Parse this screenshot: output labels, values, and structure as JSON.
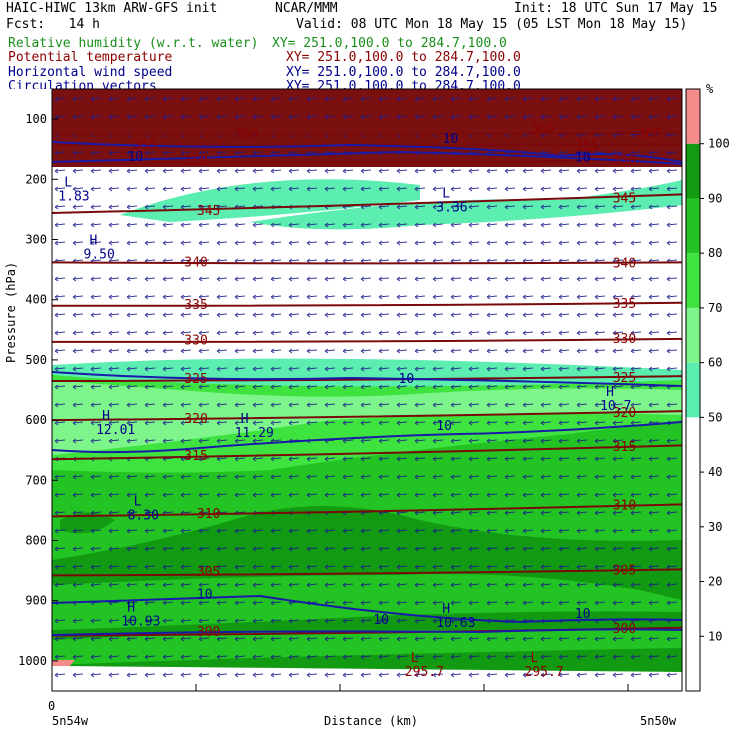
{
  "header": {
    "model": "HAIC-HIWC 13km ARW-GFS init",
    "org": "NCAR/MMM",
    "init": "Init: 18 UTC Sun 17 May 15",
    "fcst": "Fcst:   14 h",
    "valid": "Valid: 08 UTC Mon 18 May 15 (05 LST Mon 18 May 15)"
  },
  "fields": [
    {
      "name": "Relative humidity (w.r.t. water)",
      "xy": "XY= 251.0,100.0 to 284.7,100.0",
      "color": "#1a8f1a"
    },
    {
      "name": "Potential temperature",
      "xy": "XY= 251.0,100.0 to 284.7,100.0",
      "color": "#8b0000"
    },
    {
      "name": "Horizontal wind speed",
      "xy": "XY= 251.0,100.0 to 284.7,100.0",
      "color": "#00008b"
    },
    {
      "name": "Circulation vectors",
      "xy": "XY= 251.0,100.0 to 284.7,100.0",
      "color": "#00008b"
    }
  ],
  "chart_data": {
    "type": "heatmap",
    "ylabel": "Pressure (hPa)",
    "xlabel": "Distance (km)",
    "x_start_label": "0",
    "x_left_label": "5n54w",
    "x_right_label": "5n50w",
    "yticks": [
      100,
      200,
      300,
      400,
      500,
      600,
      700,
      800,
      900,
      1000
    ],
    "ylim": [
      50,
      1050
    ],
    "colorbar": {
      "unit": "%",
      "ticks": [
        10,
        20,
        30,
        40,
        50,
        60,
        70,
        80,
        90,
        100
      ],
      "bands": [
        {
          "from": 0,
          "to": 50,
          "color": "#ffffff"
        },
        {
          "from": 50,
          "to": 60,
          "color": "#5cedb0"
        },
        {
          "from": 60,
          "to": 70,
          "color": "#7df58a"
        },
        {
          "from": 70,
          "to": 80,
          "color": "#3fe33f"
        },
        {
          "from": 80,
          "to": 90,
          "color": "#22c322"
        },
        {
          "from": 90,
          "to": 100,
          "color": "#129a12"
        },
        {
          "from": 100,
          "to": 110,
          "color": "#f48c8c"
        }
      ]
    },
    "theta_contours": [
      {
        "value": 300,
        "p_left": 958,
        "p_right": 945
      },
      {
        "value": 305,
        "p_left": 858,
        "p_right": 848
      },
      {
        "value": 310,
        "p_left": 760,
        "p_right": 740
      },
      {
        "value": 315,
        "p_left": 665,
        "p_right": 642
      },
      {
        "value": 320,
        "p_left": 600,
        "p_right": 585
      },
      {
        "value": 325,
        "p_left": 535,
        "p_right": 527
      },
      {
        "value": 330,
        "p_left": 470,
        "p_right": 465
      },
      {
        "value": 335,
        "p_left": 410,
        "p_right": 405
      },
      {
        "value": 340,
        "p_left": 338,
        "p_right": 338
      },
      {
        "value": 345,
        "p_left": 256,
        "p_right": 225
      },
      {
        "value": 350,
        "p_left": 172,
        "p_right": 168
      },
      {
        "value": 355,
        "p_left": 143,
        "p_right": 142
      },
      {
        "value": 360,
        "p_left": 125,
        "p_right": 122
      }
    ],
    "theta_labels": [
      {
        "text": "300",
        "x": 0.23,
        "p": 952
      },
      {
        "text": "300",
        "x": 0.89,
        "p": 947
      },
      {
        "text": "305",
        "x": 0.23,
        "p": 852
      },
      {
        "text": "305",
        "x": 0.89,
        "p": 850
      },
      {
        "text": "310",
        "x": 0.23,
        "p": 756
      },
      {
        "text": "310",
        "x": 0.89,
        "p": 742
      },
      {
        "text": "315",
        "x": 0.21,
        "p": 660
      },
      {
        "text": "315",
        "x": 0.89,
        "p": 645
      },
      {
        "text": "320",
        "x": 0.21,
        "p": 598
      },
      {
        "text": "320",
        "x": 0.89,
        "p": 588
      },
      {
        "text": "325",
        "x": 0.21,
        "p": 532
      },
      {
        "text": "325",
        "x": 0.89,
        "p": 530
      },
      {
        "text": "330",
        "x": 0.21,
        "p": 468
      },
      {
        "text": "330",
        "x": 0.89,
        "p": 465
      },
      {
        "text": "335",
        "x": 0.21,
        "p": 409
      },
      {
        "text": "335",
        "x": 0.89,
        "p": 407
      },
      {
        "text": "340",
        "x": 0.21,
        "p": 338
      },
      {
        "text": "340",
        "x": 0.89,
        "p": 340
      },
      {
        "text": "345",
        "x": 0.23,
        "p": 253
      },
      {
        "text": "345",
        "x": 0.89,
        "p": 232
      },
      {
        "text": "350",
        "x": 0.21,
        "p": 170
      },
      {
        "text": "350",
        "x": 0.89,
        "p": 168
      },
      {
        "text": "355",
        "x": 0.13,
        "p": 143
      },
      {
        "text": "355",
        "x": 0.83,
        "p": 145
      },
      {
        "text": "360",
        "x": 0.29,
        "p": 125
      },
      {
        "text": "360",
        "x": 0.93,
        "p": 124
      },
      {
        "text": "365",
        "x": 0.76,
        "p": 116
      }
    ],
    "wind_labels": [
      {
        "text": "10",
        "x": 0.12,
        "p": 163
      },
      {
        "text": "10",
        "x": 0.62,
        "p": 133
      },
      {
        "text": "10",
        "x": 0.83,
        "p": 164
      },
      {
        "text": "10",
        "x": 0.55,
        "p": 532
      },
      {
        "text": "10",
        "x": 0.61,
        "p": 610
      },
      {
        "text": "10",
        "x": 0.23,
        "p": 890
      },
      {
        "text": "10",
        "x": 0.51,
        "p": 932
      },
      {
        "text": "10",
        "x": 0.83,
        "p": 922
      }
    ],
    "extrema": [
      {
        "type": "L",
        "value": "1.83",
        "x": 0.01,
        "p": 222
      },
      {
        "type": "L",
        "value": "3.36",
        "x": 0.61,
        "p": 240
      },
      {
        "type": "H",
        "value": "9.50",
        "x": 0.05,
        "p": 318
      },
      {
        "type": "H",
        "value": "12.01",
        "x": 0.07,
        "p": 610
      },
      {
        "type": "H",
        "value": "11.29",
        "x": 0.29,
        "p": 615
      },
      {
        "type": "H",
        "value": "10.7",
        "x": 0.87,
        "p": 570
      },
      {
        "type": "L",
        "value": "8.30",
        "x": 0.12,
        "p": 752
      },
      {
        "type": "H",
        "value": "10.93",
        "x": 0.11,
        "p": 928
      },
      {
        "type": "H",
        "value": "10.63",
        "x": 0.61,
        "p": 930
      },
      {
        "type": "L",
        "value": "295.7",
        "x": 0.56,
        "p": 1012
      },
      {
        "type": "L",
        "value": "295.7",
        "x": 0.75,
        "p": 1012
      }
    ]
  }
}
